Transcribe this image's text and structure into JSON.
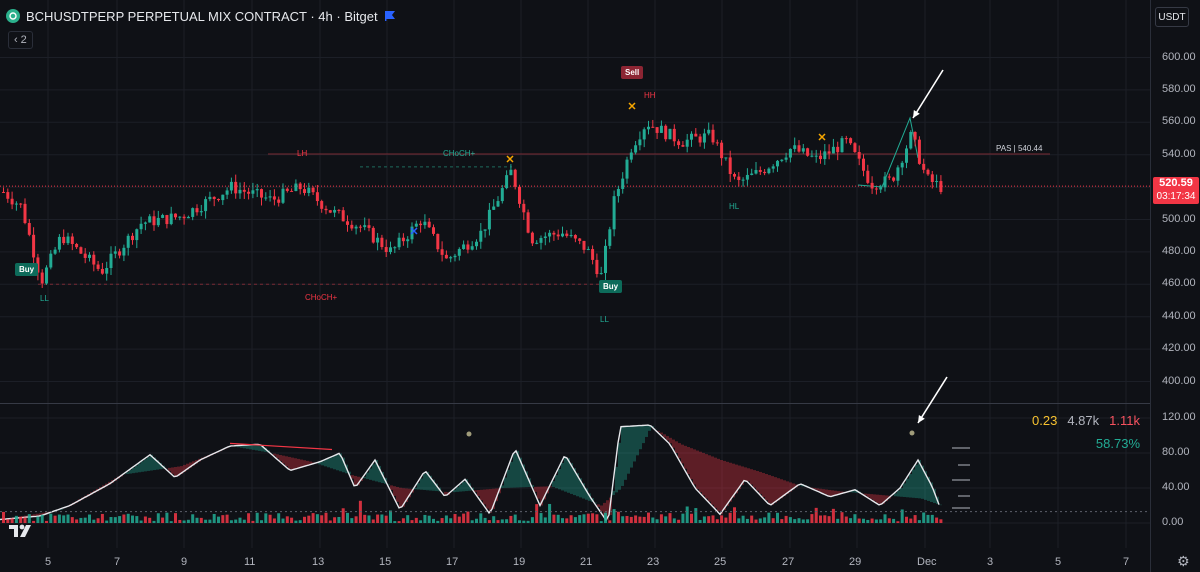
{
  "header": {
    "title": "BCHUSDTPERP PERPETUAL MIX CONTRACT · 4h · Bitget",
    "indicator_count": "2",
    "currency": "USDT"
  },
  "price_axis": {
    "labels": [
      "600.00",
      "580.00",
      "560.00",
      "540.00",
      "520.00",
      "500.00",
      "480.00",
      "460.00",
      "440.00",
      "420.00",
      "400.00"
    ]
  },
  "current_price": {
    "value": "520.59",
    "countdown": "03:17:34"
  },
  "date_axis": {
    "labels": [
      "5",
      "7",
      "9",
      "11",
      "13",
      "15",
      "17",
      "19",
      "21",
      "23",
      "25",
      "27",
      "29",
      "Dec",
      "3",
      "5",
      "7"
    ]
  },
  "oscillator": {
    "axis_labels": [
      "120.00",
      "80.00",
      "40.00",
      "0.00"
    ],
    "stat_1": "0.23",
    "stat_2": "4.87k",
    "stat_3": "1.11k",
    "percent": "58.73%"
  },
  "annotations": {
    "buy_1": "Buy",
    "buy_2": "Buy",
    "sell": "Sell",
    "ll_1": "LL",
    "ll_2": "LL",
    "hh": "HH",
    "hl": "HL",
    "lh": "LH",
    "choch_1": "CHoCH+",
    "choch_2": "CHoCH+",
    "pas": "PAS | 540.44"
  },
  "colors": {
    "up": "#22ab94",
    "down": "#f23645",
    "background": "#0f1116",
    "accent": "#2962ff"
  },
  "icons": [
    "coin-icon",
    "flag-icon",
    "chevron-icon",
    "tradingview-logo-icon",
    "gear-icon",
    "arrow-icon"
  ]
}
